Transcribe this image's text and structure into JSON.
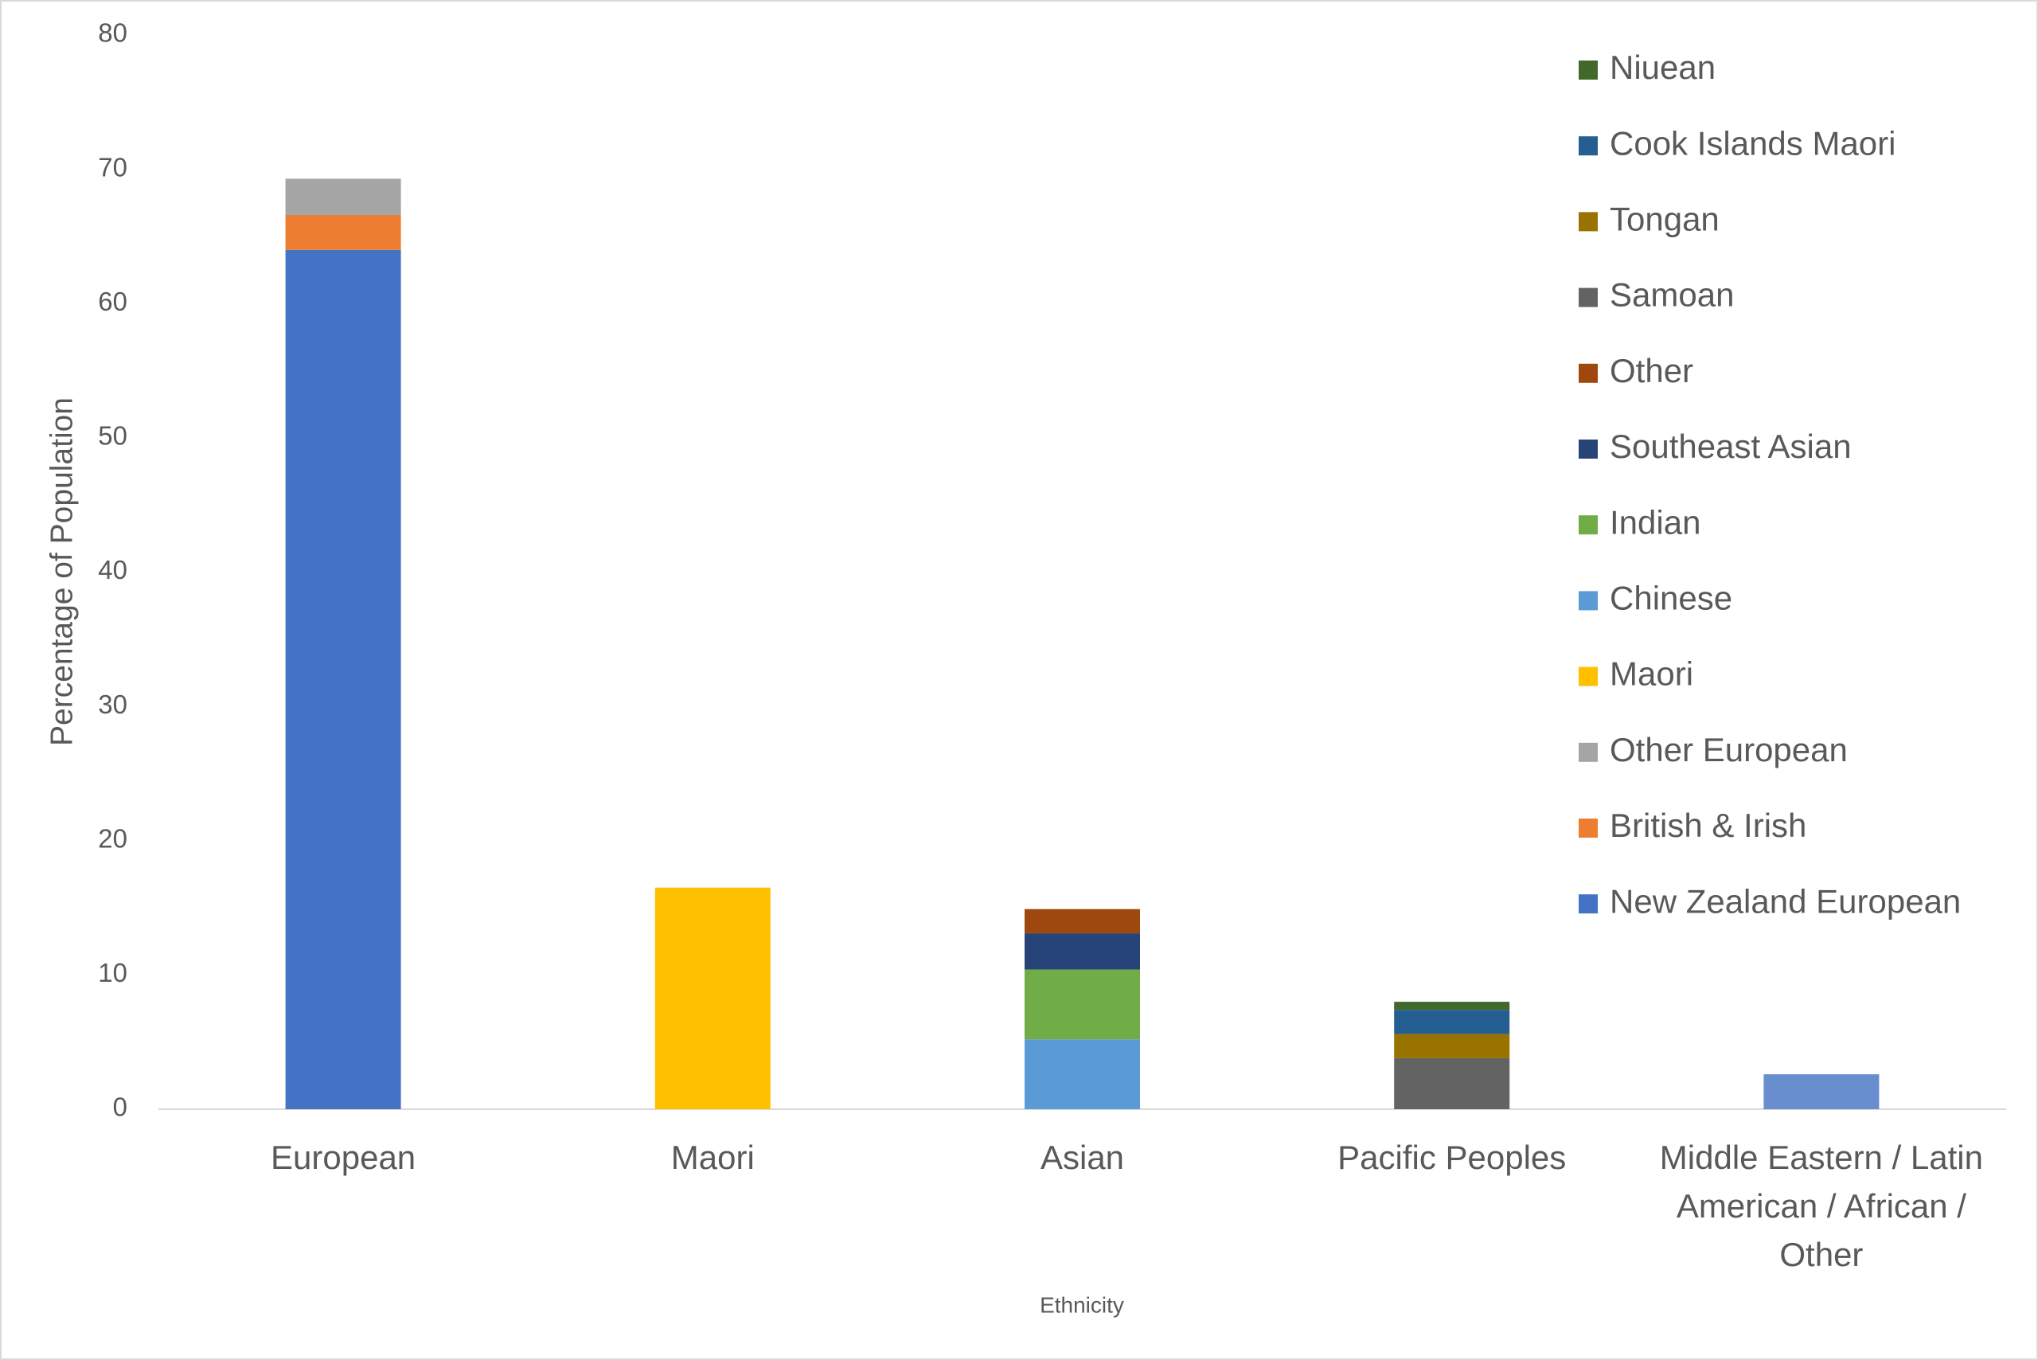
{
  "chart_data": {
    "type": "stacked_bar",
    "y_label": "Percentage of Population",
    "x_label": "Ethnicity",
    "categories": [
      "European",
      "Maori",
      "Asian",
      "Pacific Peoples",
      "Middle Eastern / Latin American / African / Other"
    ],
    "ylim": [
      0,
      80
    ],
    "yticks": [
      0,
      10,
      20,
      30,
      40,
      50,
      60,
      70,
      80
    ],
    "grid": false,
    "legend": "right",
    "series": [
      {
        "name": "New Zealand European",
        "color": "#4472c4",
        "values": [
          64.0,
          null,
          null,
          null,
          null
        ]
      },
      {
        "name": "British & Irish",
        "color": "#ed7d31",
        "values": [
          2.6,
          null,
          null,
          null,
          null
        ]
      },
      {
        "name": "Other European",
        "color": "#a5a5a5",
        "values": [
          2.7,
          null,
          null,
          null,
          null
        ]
      },
      {
        "name": "Maori",
        "color": "#ffc000",
        "values": [
          null,
          16.5,
          null,
          null,
          null
        ]
      },
      {
        "name": "Chinese",
        "color": "#5b9bd5",
        "values": [
          null,
          null,
          5.2,
          null,
          null
        ]
      },
      {
        "name": "Indian",
        "color": "#70ad47",
        "values": [
          null,
          null,
          5.2,
          null,
          null
        ]
      },
      {
        "name": "Southeast Asian",
        "color": "#264478",
        "values": [
          null,
          null,
          2.7,
          null,
          null
        ]
      },
      {
        "name": "Other",
        "color": "#9e480e",
        "values": [
          null,
          null,
          1.8,
          null,
          null
        ]
      },
      {
        "name": "Samoan",
        "color": "#636363",
        "values": [
          null,
          null,
          null,
          3.8,
          null
        ]
      },
      {
        "name": "Tongan",
        "color": "#997300",
        "values": [
          null,
          null,
          null,
          1.8,
          null
        ]
      },
      {
        "name": "Cook Islands Maori",
        "color": "#255e91",
        "values": [
          null,
          null,
          null,
          1.8,
          null
        ]
      },
      {
        "name": "Niuean",
        "color": "#43682b",
        "values": [
          null,
          null,
          null,
          0.6,
          null
        ]
      },
      {
        "color": "#698ed0",
        "values": [
          null,
          null,
          null,
          null,
          2.6
        ]
      }
    ]
  }
}
